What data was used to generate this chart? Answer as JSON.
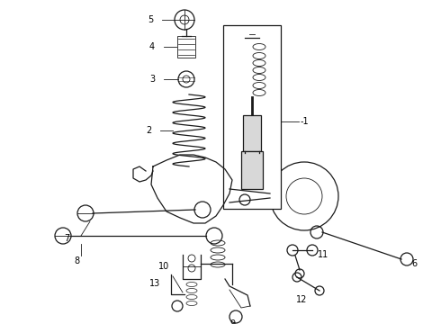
{
  "background_color": "#ffffff",
  "line_color": "#1a1a1a",
  "fig_width": 4.9,
  "fig_height": 3.6,
  "dpi": 100,
  "xlim": [
    0,
    490
  ],
  "ylim": [
    0,
    360
  ]
}
